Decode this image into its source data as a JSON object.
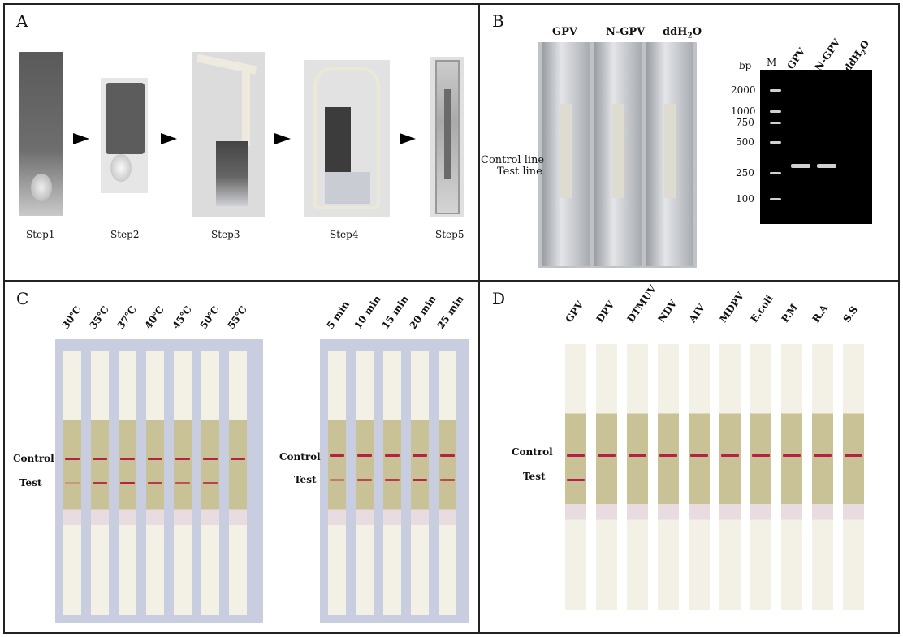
{
  "panels": {
    "A": {
      "label": "A",
      "steps": [
        "Step1",
        "Step2",
        "Step3",
        "Step4",
        "Step5"
      ]
    },
    "B": {
      "label": "B",
      "device_labels": [
        "GPV",
        "N-GPV",
        "ddH"
      ],
      "water_sub": "2",
      "water_suffix": "O",
      "side_labels": {
        "control": "Control line",
        "test": "Test line"
      },
      "gel": {
        "unit_label": "bp",
        "marker_label": "M",
        "lanes": [
          "GPV",
          "N-GPV",
          "ddH"
        ],
        "water_sub": "2",
        "water_suffix": "O",
        "ladder": [
          "2000",
          "1000",
          "750",
          "500",
          "250",
          "100"
        ]
      }
    },
    "C": {
      "label": "C",
      "temps": [
        "30℃",
        "35℃",
        "37℃",
        "40℃",
        "45℃",
        "50℃",
        "55℃"
      ],
      "temp_test_band": [
        0.25,
        0.9,
        1.0,
        0.85,
        0.7,
        0.8,
        0.0
      ],
      "times": [
        "5 min",
        "10 min",
        "15 min",
        "20 min",
        "25 min"
      ],
      "time_test_band": [
        0.45,
        0.75,
        0.85,
        0.95,
        0.75
      ],
      "side_labels": {
        "control": "Control",
        "test": "Test"
      }
    },
    "D": {
      "label": "D",
      "samples": [
        "GPV",
        "DPV",
        "DTMUV",
        "NDV",
        "AIV",
        "MDPV",
        "E.coli",
        "P.M",
        "R.A",
        "S.S"
      ],
      "test_band": [
        1,
        0,
        0,
        0,
        0,
        0,
        0,
        0,
        0,
        0
      ],
      "side_labels": {
        "control": "Control",
        "test": "Test"
      }
    }
  },
  "colors": {
    "strip_pad": "#f3f0e6",
    "membrane": "#c8c296",
    "band": "#b42046",
    "background_C": "#c9cde0"
  }
}
